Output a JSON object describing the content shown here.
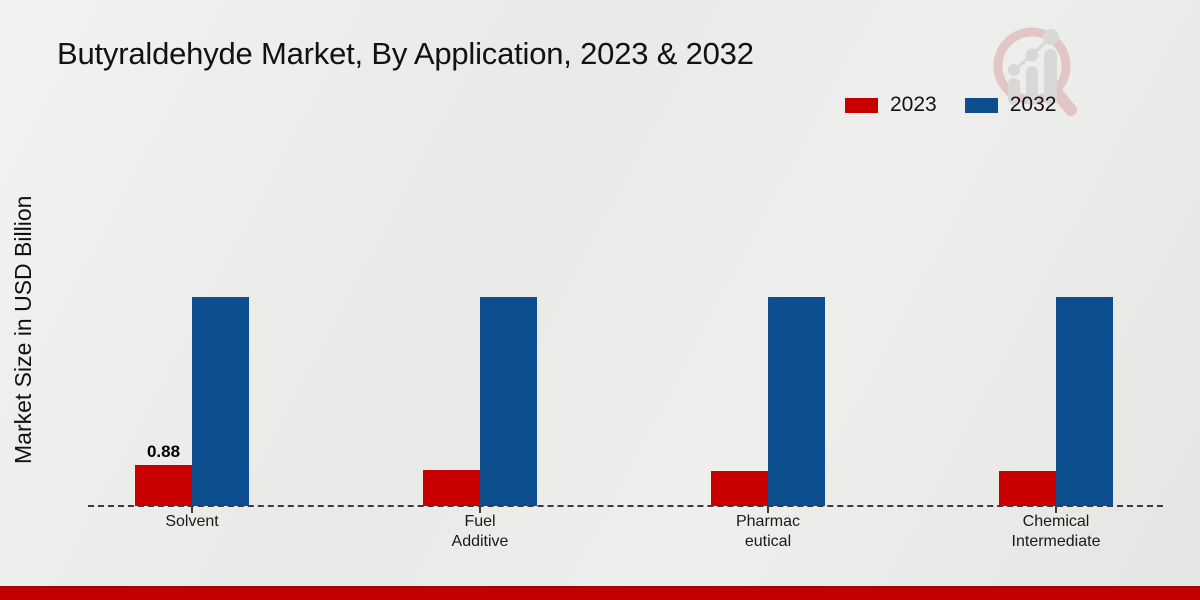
{
  "header": {
    "title": "Butyraldehyde Market, By Application, 2023 & 2032"
  },
  "watermark": {
    "icon": "magnifier-growth-chart-logo",
    "ring_color": "#d9a0a0",
    "bars_color": "#c4c4c4"
  },
  "footer": {
    "bar_color": "#c30000"
  },
  "chart_data": {
    "type": "bar",
    "title": "Butyraldehyde Market, By Application, 2023 & 2032",
    "xlabel": "",
    "ylabel": "Market Size in USD Billion",
    "categories": [
      "Solvent",
      "Fuel Additive",
      "Pharmaceutical",
      "Chemical Intermediate"
    ],
    "category_label_lines": [
      [
        "Solvent"
      ],
      [
        "Fuel",
        "Additive"
      ],
      [
        "Pharmac",
        "eutical"
      ],
      [
        "Chemical",
        "Intermediate"
      ]
    ],
    "series": [
      {
        "name": "2023",
        "color": "#c90000",
        "values": [
          0.88,
          0.77,
          0.75,
          0.76
        ],
        "value_labels": [
          "0.88",
          "",
          "",
          ""
        ]
      },
      {
        "name": "2032",
        "color": "#0d4e8f",
        "values": [
          4.49,
          4.49,
          4.49,
          4.49
        ],
        "value_labels": [
          "",
          "",
          "",
          ""
        ]
      }
    ],
    "ylim": [
      0,
      4.8
    ],
    "axis_ticks_shown": false,
    "gridlines": false,
    "baseline_style": "dashed",
    "legend_position": "top-right"
  }
}
